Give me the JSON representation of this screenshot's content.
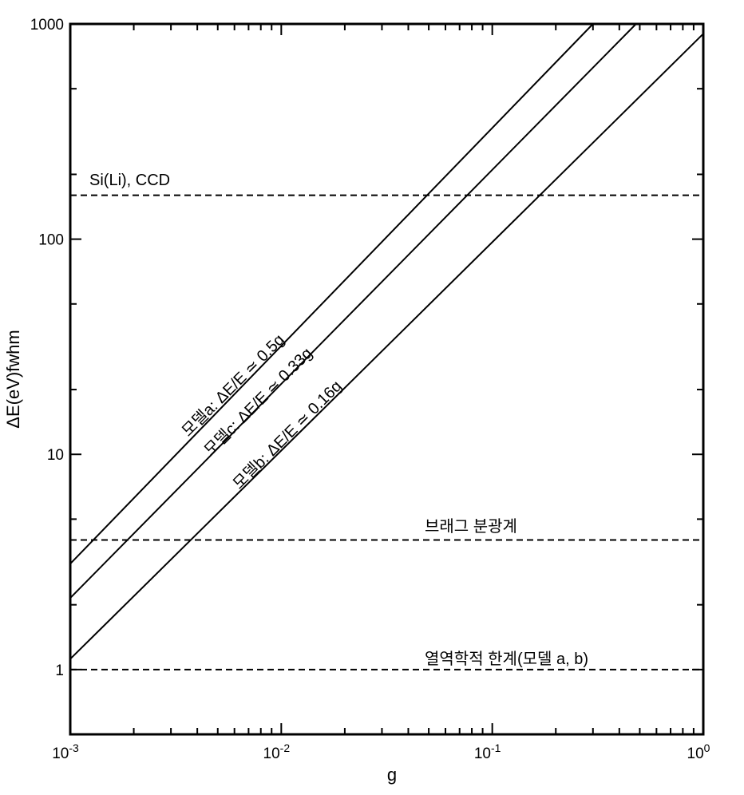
{
  "chart_data": {
    "type": "line",
    "title": "",
    "xlabel": "g",
    "ylabel": "ΔE(eV)fwhm",
    "xscale": "log",
    "yscale": "log",
    "xlim": [
      0.001,
      1
    ],
    "ylim": [
      0.5,
      1000
    ],
    "grid": false,
    "x_tick_labels": [
      {
        "value": 0.001,
        "base": "10",
        "exp": "-3"
      },
      {
        "value": 0.01,
        "base": "10",
        "exp": "-2"
      },
      {
        "value": 0.1,
        "base": "10",
        "exp": "-1"
      },
      {
        "value": 1,
        "base": "10",
        "exp": "0"
      }
    ],
    "y_tick_labels": [
      {
        "value": 1,
        "label": "1"
      },
      {
        "value": 10,
        "label": "10"
      },
      {
        "value": 100,
        "label": "100"
      },
      {
        "value": 1000,
        "label": "1000"
      }
    ],
    "series": [
      {
        "label": "모델a: ΔE/E ≃ 0.5g",
        "style": "solid",
        "x": [
          0.001,
          0.3
        ],
        "y": [
          3.1,
          1000
        ]
      },
      {
        "label": "모델c: ΔE/E ≃ 0.33g",
        "style": "solid",
        "x": [
          0.001,
          0.48
        ],
        "y": [
          2.15,
          1000
        ]
      },
      {
        "label": "모델b: ΔE/E ≃ 0.16g",
        "style": "solid",
        "x": [
          0.001,
          1
        ],
        "y": [
          1.12,
          900
        ]
      }
    ],
    "reference_lines": [
      {
        "label": "Si(Li), CCD",
        "y": 160,
        "style": "dashed"
      },
      {
        "label": "브래그 분광계",
        "y": 4,
        "style": "dashed"
      },
      {
        "label": "열역학적 한계(모델 a, b)",
        "y": 1,
        "style": "dashed"
      }
    ]
  }
}
